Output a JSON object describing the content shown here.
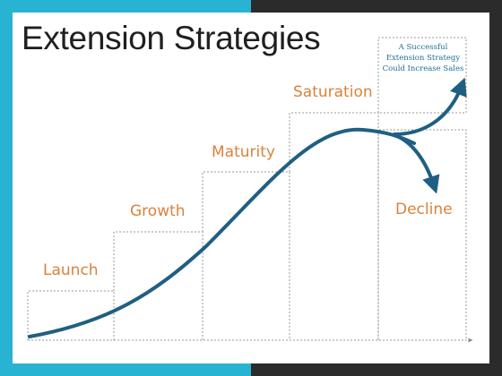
{
  "slide": {
    "title": "Extension Strategies",
    "colors": {
      "accent_left": "#29b3d2",
      "accent_right": "#2b2b2b",
      "curve": "#1f5f82",
      "label": "#d9823b",
      "note": "#1f6e96",
      "dotted_lines": "#9a9a9a"
    }
  },
  "stages": [
    {
      "label": "Launch"
    },
    {
      "label": "Growth"
    },
    {
      "label": "Maturity"
    },
    {
      "label": "Saturation"
    },
    {
      "label": "Decline"
    }
  ],
  "note": {
    "line1": "A Successful",
    "line2": "Extension Strategy",
    "line3": "Could Increase Sales"
  }
}
